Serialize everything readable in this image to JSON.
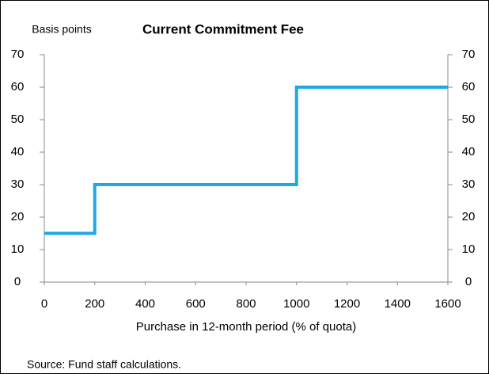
{
  "chart_data": {
    "type": "line",
    "title": "Current Commitment Fee",
    "ylabel": "Basis points",
    "xlabel": "Purchase in 12-month period (% of quota)",
    "source": "Source: Fund staff calculations.",
    "x": [
      0,
      200,
      200,
      1000,
      1000,
      1600
    ],
    "values": [
      15,
      15,
      30,
      30,
      60,
      60
    ],
    "color": "#1fa9e4",
    "xlim": [
      0,
      1600
    ],
    "xticks": [
      0,
      200,
      400,
      600,
      800,
      1000,
      1200,
      1400,
      1600
    ],
    "ylim": [
      0,
      70
    ],
    "yticks": [
      0,
      10,
      20,
      30,
      40,
      50,
      60,
      70
    ],
    "y2lim": [
      0,
      70
    ],
    "y2ticks": [
      0,
      10,
      20,
      30,
      40,
      50,
      60,
      70
    ]
  }
}
